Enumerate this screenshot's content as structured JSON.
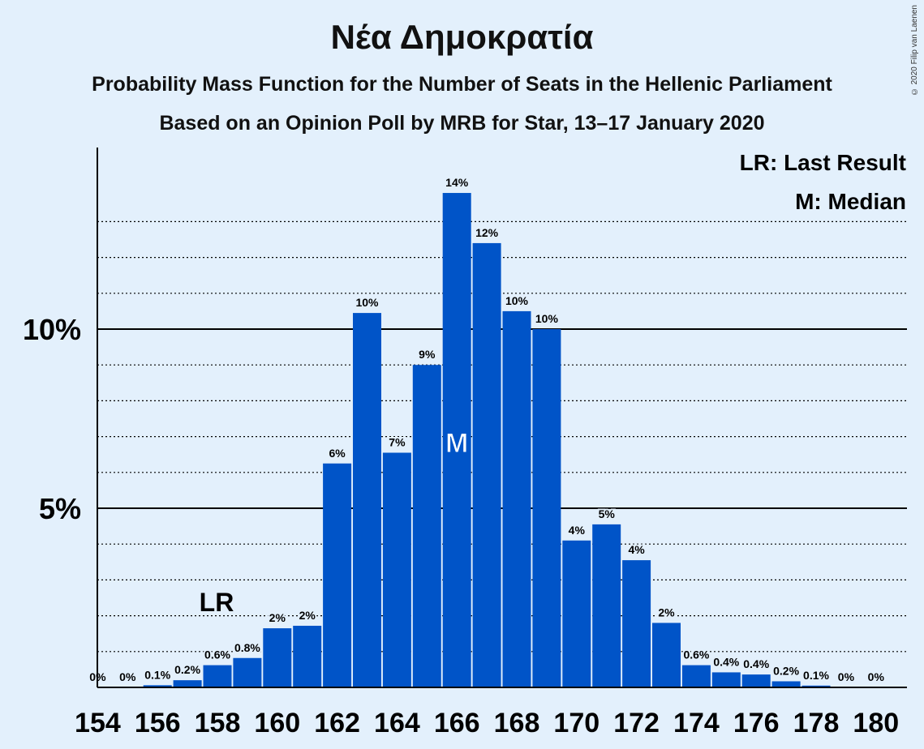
{
  "title": "Νέα Δημοκρατία",
  "subtitle_1": "Probability Mass Function for the Number of Seats in the Hellenic Parliament",
  "subtitle_2": "Based on an Opinion Poll by MRB for Star, 13–17 January 2020",
  "copyright": "© 2020 Filip van Laenen",
  "legend": {
    "last_result": "LR: Last Result",
    "median": "M: Median"
  },
  "colors": {
    "background": "#e3f0fc",
    "bar": "#0054c8",
    "axis": "#000000"
  },
  "chart_data": {
    "type": "bar",
    "x": [
      154,
      155,
      156,
      157,
      158,
      159,
      160,
      161,
      162,
      163,
      164,
      165,
      166,
      167,
      168,
      169,
      170,
      171,
      172,
      173,
      174,
      175,
      176,
      177,
      178,
      179,
      180
    ],
    "values": [
      0,
      0,
      0.06,
      0.2,
      0.62,
      0.82,
      1.65,
      1.72,
      6.25,
      10.45,
      6.55,
      9.0,
      13.8,
      12.4,
      10.5,
      10.0,
      4.1,
      4.55,
      3.55,
      1.8,
      0.62,
      0.42,
      0.36,
      0.17,
      0.05,
      0,
      0
    ],
    "labels": [
      "0%",
      "0%",
      "0.1%",
      "0.2%",
      "0.6%",
      "0.8%",
      "2%",
      "2%",
      "6%",
      "10%",
      "7%",
      "9%",
      "14%",
      "12%",
      "10%",
      "10%",
      "4%",
      "5%",
      "4%",
      "2%",
      "0.6%",
      "0.4%",
      "0.4%",
      "0.2%",
      "0.1%",
      "0%",
      "0%"
    ],
    "xticks": [
      154,
      156,
      158,
      160,
      162,
      164,
      166,
      168,
      170,
      172,
      174,
      176,
      178,
      180
    ],
    "yticks": [
      {
        "value": 5,
        "label": "5%"
      },
      {
        "value": 10,
        "label": "10%"
      }
    ],
    "ylim": [
      0,
      15
    ],
    "gridlines_dotted": [
      1,
      2,
      3,
      4,
      6,
      7,
      8,
      9,
      11,
      12,
      13
    ],
    "last_result": {
      "seat": 158,
      "label": "LR"
    },
    "median": {
      "seat": 166,
      "label": "M"
    }
  }
}
